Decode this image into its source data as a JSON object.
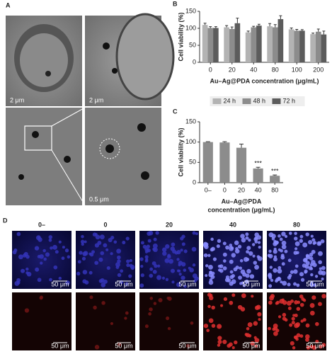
{
  "figure": {
    "panel_labels": [
      "A",
      "B",
      "C",
      "D"
    ],
    "micrographs": {
      "scale_bars": [
        "2 μm",
        "2 μm",
        "0.5 μm"
      ]
    },
    "fluorescence": {
      "columns": [
        "0–",
        "0",
        "20",
        "40",
        "80"
      ],
      "scale_bar": "50 μm"
    }
  },
  "chart_data": [
    {
      "type": "bar",
      "ylabel": "Cell viability (%)",
      "xlabel": [
        "Au–Ag@PDA concentration (μg/mL)"
      ],
      "categories": [
        "0",
        "20",
        "40",
        "80",
        "100",
        "200"
      ],
      "series": [
        {
          "name": "24 h",
          "color": "#b3b3b3",
          "values": [
            110,
            103,
            88,
            106,
            97,
            83
          ],
          "errors": [
            5,
            5,
            4,
            8,
            4,
            3
          ]
        },
        {
          "name": "48 h",
          "color": "#8c8c8c",
          "values": [
            101,
            98,
            103,
            103,
            93,
            90
          ],
          "errors": [
            4,
            6,
            3,
            8,
            4,
            8
          ]
        },
        {
          "name": "72 h",
          "color": "#5c5c5c",
          "values": [
            101,
            115,
            108,
            127,
            93,
            82
          ],
          "errors": [
            4,
            15,
            4,
            10,
            3,
            10
          ]
        }
      ],
      "ylim": [
        0,
        150
      ],
      "yticks": [
        0,
        50,
        100,
        150
      ],
      "legend": "bottom"
    },
    {
      "type": "bar",
      "ylabel": "Cell viability (%)",
      "xlabel": [
        "Au–Ag@PDA",
        "concentration (μg/mL)"
      ],
      "categories": [
        "0–",
        "0",
        "20",
        "40",
        "80"
      ],
      "values": [
        100,
        99,
        86,
        35,
        17
      ],
      "errors": [
        1,
        2,
        9,
        3,
        2
      ],
      "color": "#8c8c8c",
      "annotations": [
        {
          "x": "40",
          "text": "***"
        },
        {
          "x": "80",
          "text": "***"
        }
      ],
      "ylim": [
        0,
        150
      ],
      "yticks": [
        0,
        50,
        100,
        150
      ]
    }
  ]
}
